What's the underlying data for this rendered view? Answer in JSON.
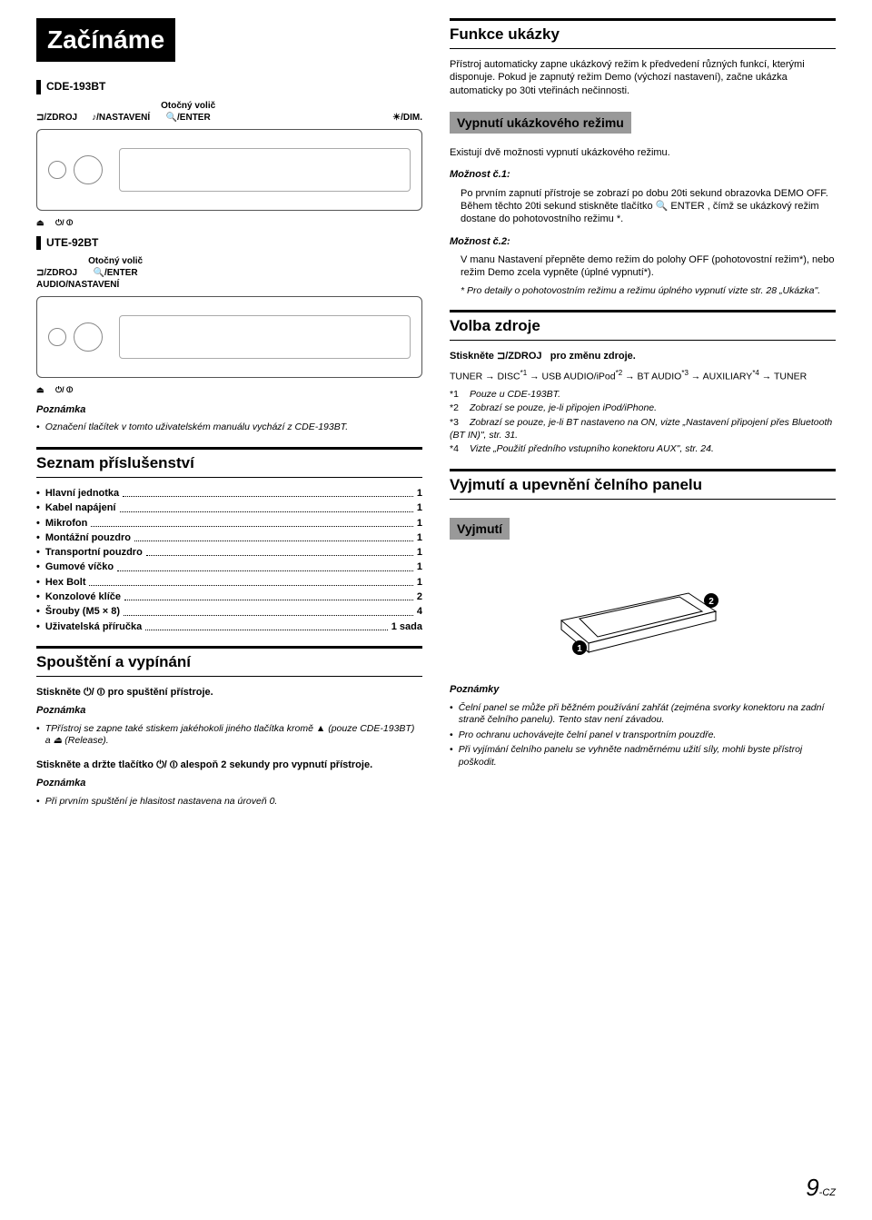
{
  "title": "Začínáme",
  "models": {
    "a": "CDE-193BT",
    "b": "UTE-92BT"
  },
  "labels": {
    "zdroj": "/ZDROJ",
    "nastaveni": "/NASTAVENÍ",
    "otocny": "Otočný volič",
    "enter": "/ENTER",
    "dim": "/DIM.",
    "audio_nast": "AUDIO/NASTAVENÍ"
  },
  "note1_head": "Poznámka",
  "note1": "Označení tlačítek v tomto uživatelském manuálu vychází z CDE-193BT.",
  "acc_head": "Seznam příslušenství",
  "acc": [
    {
      "n": "Hlavní jednotka",
      "q": "1"
    },
    {
      "n": "Kabel napájení",
      "q": "1"
    },
    {
      "n": "Mikrofon",
      "q": "1"
    },
    {
      "n": "Montážní pouzdro",
      "q": "1"
    },
    {
      "n": "Transportní pouzdro",
      "q": "1"
    },
    {
      "n": "Gumové víčko",
      "q": "1"
    },
    {
      "n": "Hex Bolt",
      "q": "1"
    },
    {
      "n": "Konzolové klíče",
      "q": "2"
    },
    {
      "n": "Šrouby (M5 × 8)",
      "q": "4"
    },
    {
      "n": "Uživatelská příručka",
      "q": "1 sada"
    }
  ],
  "onoff_head": "Spouštění a vypínání",
  "onoff": {
    "l1a": "Stiskněte",
    "l1b": "pro spuštění přístroje.",
    "n1h": "Poznámka",
    "n1": "TPřístroj se zapne také stiskem jakéhokoli jiného tlačítka kromě ▲ (pouze CDE-193BT) a ⏏ (Release).",
    "l2a": "Stiskněte a držte tlačítko",
    "l2b": "alespoň 2 sekundy pro vypnutí přístroje.",
    "n2h": "Poznámka",
    "n2": "Při prvním spuštění je hlasitost nastavena na úroveň 0."
  },
  "demo_head": "Funkce ukázky",
  "demo": {
    "p1": "Přístroj automaticky zapne ukázkový režim k předvedení různých funkcí, kterými disponuje. Pokud je zapnutý režim Demo (výchozí nastavení), začne ukázka automaticky po 30ti vteřinách nečinnosti.",
    "sub": "Vypnutí ukázkového režimu",
    "p2": "Existují dvě možnosti vypnutí ukázkového režimu.",
    "o1h": "Možnost č.1:",
    "o1": "Po prvním zapnutí přístroje se zobrazí po dobu 20ti sekund obrazovka DEMO OFF. Během těchto 20ti sekund stiskněte tlačítko 🔍 ENTER , čímž se ukázkový režim dostane do pohotovostního režimu *.",
    "o2h": "Možnost č.2:",
    "o2": "V manu Nastavení přepněte demo režim do polohy OFF (pohotovostní režim*), nebo režim Demo zcela vypněte (úplné vypnutí*).",
    "star": "Pro detaily o pohotovostním režimu a režimu úplného vypnutí vizte str. 28 „Ukázka\"."
  },
  "src_head": "Volba zdroje",
  "src": {
    "l1a": "Stiskněte",
    "l1b": "/ZDROJ",
    "l1c": "pro změnu zdroje.",
    "seq": "TUNER → DISC*1 → USB AUDIO/iPod*2 → BT AUDIO*3 → AUXILIARY*4 → TUNER",
    "f": [
      {
        "n": "*1",
        "t": "Pouze u CDE-193BT."
      },
      {
        "n": "*2",
        "t": "Zobrazí se pouze, je-li připojen iPod/iPhone."
      },
      {
        "n": "*3",
        "t": "Zobrazí se pouze, je-li BT nastaveno na ON, vizte „Nastavení připojení přes Bluetooth (BT IN)\", str. 31."
      },
      {
        "n": "*4",
        "t": "Vizte „Použití předního vstupního konektoru AUX\", str. 24."
      }
    ]
  },
  "panel_head": "Vyjmutí a upevnění čelního panelu",
  "panel_sub": "Vyjmutí",
  "panel_notes_h": "Poznámky",
  "panel_notes": [
    "Čelní panel se může při běžném používání zahřát (zejména svorky konektoru na zadní straně čelního panelu). Tento stav není závadou.",
    "Pro ochranu uchovávejte čelní panel v transportním pouzdře.",
    "Při vyjímání čelního panelu se vyhněte nadměrnému užití síly, mohli byste přístroj poškodit."
  ],
  "pg": {
    "n": "9",
    "s": "-CZ"
  }
}
